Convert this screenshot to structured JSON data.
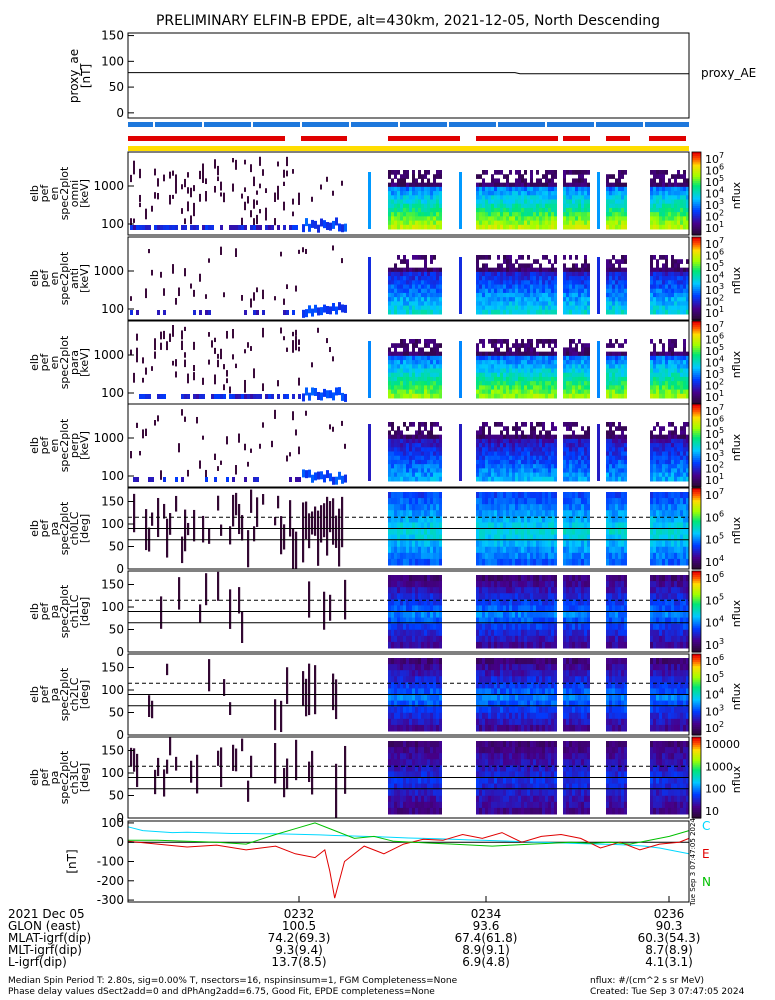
{
  "title": "PRELIMINARY ELFIN-B EPDE, alt=430km, 2021-12-05, North Descending",
  "chart_data": [
    {
      "type": "line",
      "name": "proxy_ae_panel",
      "ylabel": [
        "proxy_ae",
        "[nT]"
      ],
      "right_label": "proxy_AE",
      "yticks": [
        "150",
        "100",
        "50",
        "0"
      ],
      "ylim": [
        -10,
        155
      ],
      "x": [
        "02:30:40",
        "02:32:00",
        "02:33:30",
        "02:36:20"
      ],
      "values": [
        78,
        78,
        78,
        76
      ]
    },
    {
      "type": "heatmap",
      "name": "energy_spectrograms",
      "yscale": "log",
      "ytick_labels": [
        "1000",
        "100"
      ],
      "panels": [
        {
          "ylabel": [
            "elb",
            "pef",
            "en",
            "spec2plot",
            "omni",
            "[keV]"
          ],
          "colorbar_ticks": [
            "10^7",
            "10^6",
            "10^5",
            "10^4",
            "10^3",
            "10^2",
            "10^1"
          ],
          "colorbar_label": "nflux"
        },
        {
          "ylabel": [
            "elb",
            "pef",
            "en",
            "spec2plot",
            "anti",
            "[keV]"
          ],
          "colorbar_ticks": [
            "10^7",
            "10^6",
            "10^5",
            "10^4",
            "10^3",
            "10^2",
            "10^1"
          ],
          "colorbar_label": "nflux"
        },
        {
          "ylabel": [
            "elb",
            "pef",
            "en",
            "spec2plot",
            "para",
            "[keV]"
          ],
          "colorbar_ticks": [
            "10^7",
            "10^6",
            "10^5",
            "10^4",
            "10^3",
            "10^2",
            "10^1"
          ],
          "colorbar_label": "nflux"
        },
        {
          "ylabel": [
            "elb",
            "pef",
            "en",
            "spec2plot",
            "perp",
            "[keV]"
          ],
          "colorbar_ticks": [
            "10^7",
            "10^6",
            "10^5",
            "10^4",
            "10^3",
            "10^2",
            "10^1"
          ],
          "colorbar_label": "nflux"
        }
      ]
    },
    {
      "type": "heatmap",
      "name": "pitch_angle_spectrograms",
      "yticks": [
        "150",
        "100",
        "50",
        "0"
      ],
      "ylim": [
        0,
        180
      ],
      "panels": [
        {
          "ylabel": [
            "elb",
            "pef",
            "pa",
            "spec2plot",
            "ch0LC",
            "[deg]"
          ],
          "colorbar_ticks": [
            "10^7",
            "10^6",
            "10^5",
            "10^4"
          ],
          "colorbar_label": "nflux"
        },
        {
          "ylabel": [
            "elb",
            "pef",
            "pa",
            "spec2plot",
            "ch1LC",
            "[deg]"
          ],
          "colorbar_ticks": [
            "10^6",
            "10^5",
            "10^4",
            "10^3"
          ],
          "colorbar_label": "nflux"
        },
        {
          "ylabel": [
            "elb",
            "pef",
            "pa",
            "spec2plot",
            "ch2LC",
            "[deg]"
          ],
          "colorbar_ticks": [
            "10^6",
            "10^5",
            "10^4",
            "10^3",
            "10^2"
          ],
          "colorbar_label": "nflux"
        },
        {
          "ylabel": [
            "elb",
            "pef",
            "pa",
            "spec2plot",
            "ch3LC",
            "[deg]"
          ],
          "colorbar_ticks": [
            "10000",
            "1000",
            "100",
            "10"
          ],
          "colorbar_label": "nflux"
        }
      ]
    },
    {
      "type": "line",
      "name": "magnetic_field_residuals",
      "ylabel": "[nT]",
      "yticks": [
        "100",
        "0",
        "-100",
        "-200",
        "-300"
      ],
      "ylim": [
        -310,
        110
      ],
      "series": [
        {
          "name": "C",
          "color": "#00d8ff",
          "x": [
            0,
            0.15,
            0.3,
            0.45,
            0.6,
            0.75,
            0.9,
            1.05,
            1.2,
            1.35,
            1.5,
            1.65,
            1.8,
            1.95,
            2.1,
            2.25,
            2.4,
            2.55,
            2.7,
            2.85,
            3.0,
            3.15,
            3.3,
            3.45,
            3.6,
            3.75,
            3.9,
            4.05,
            4.2,
            4.35,
            4.5,
            4.65,
            4.8,
            4.95,
            5.1,
            5.25,
            5.4,
            5.55,
            5.7
          ],
          "values": [
            80,
            60,
            55,
            50,
            52,
            50,
            48,
            45,
            45,
            44,
            44,
            42,
            40,
            38,
            35,
            33,
            30,
            28,
            25,
            22,
            20,
            18,
            15,
            12,
            10,
            8,
            5,
            2,
            0,
            -3,
            -5,
            -8,
            -10,
            -12,
            -15,
            -20,
            -30,
            -45,
            -60
          ]
        },
        {
          "name": "E",
          "color": "#e00000",
          "x": [
            0,
            0.3,
            0.6,
            0.9,
            1.2,
            1.5,
            1.7,
            1.9,
            2.0,
            2.05,
            2.1,
            2.2,
            2.4,
            2.6,
            2.8,
            3.0,
            3.2,
            3.4,
            3.6,
            3.8,
            4.0,
            4.2,
            4.4,
            4.6,
            4.8,
            5.0,
            5.2,
            5.4,
            5.6,
            5.7
          ],
          "values": [
            5,
            -10,
            -25,
            -15,
            -40,
            -20,
            -60,
            -80,
            -40,
            -150,
            -290,
            -100,
            -20,
            -60,
            -10,
            15,
            10,
            40,
            20,
            50,
            0,
            30,
            40,
            20,
            -30,
            0,
            -40,
            -10,
            0,
            20
          ]
        },
        {
          "name": "N",
          "color": "#00c000",
          "x": [
            0,
            0.3,
            0.6,
            0.9,
            1.2,
            1.5,
            1.7,
            1.9,
            2.1,
            2.3,
            2.5,
            2.7,
            2.9,
            3.1,
            3.3,
            3.5,
            3.7,
            3.9,
            4.1,
            4.3,
            4.5,
            4.7,
            4.9,
            5.1,
            5.3,
            5.5,
            5.7
          ],
          "values": [
            10,
            10,
            5,
            0,
            -10,
            40,
            70,
            100,
            60,
            20,
            30,
            5,
            0,
            -5,
            -10,
            -15,
            -20,
            -15,
            -10,
            -5,
            0,
            -5,
            0,
            -10,
            10,
            30,
            60
          ]
        }
      ]
    }
  ],
  "time_axis": {
    "labels": [
      "0232",
      "0234",
      "0236"
    ],
    "rows": [
      {
        "name": "2021 Dec 05",
        "vals": [
          "",
          "",
          ""
        ]
      },
      {
        "name": "GLON (east)",
        "vals": [
          "100.5",
          "93.6",
          "90.3"
        ]
      },
      {
        "name": "MLAT-igrf(dip)",
        "vals": [
          "74.2(69.3)",
          "67.4(61.8)",
          "60.3(54.3)"
        ]
      },
      {
        "name": "MLT-igrf(dip)",
        "vals": [
          "9.3(9.4)",
          "8.9(9.1)",
          "8.7(8.9)"
        ]
      },
      {
        "name": "L-igrf(dip)",
        "vals": [
          "13.7(8.5)",
          "6.9(4.8)",
          "4.1(3.1)"
        ]
      }
    ]
  },
  "footer": {
    "line1": "Median Spin Period T: 2.80s, sig=0.00% T, nsectors=16, nspinsinsum=1, FGM Completeness=None",
    "line2": "Phase delay values dSect2add=0 and dPhAng2add=6.75, Good Fit, EPDE completeness=None",
    "right1": "nflux: #/(cm^2 s sr MeV)",
    "right2": "Created: Tue Sep  3 07:47:05 2024",
    "stamp": "Tue Sep  3 07:47:05 2024"
  },
  "colors": {
    "blue_bar": "#1e78dc",
    "red_bar": "#e00000",
    "yellow_bar": "#ffdd00"
  }
}
